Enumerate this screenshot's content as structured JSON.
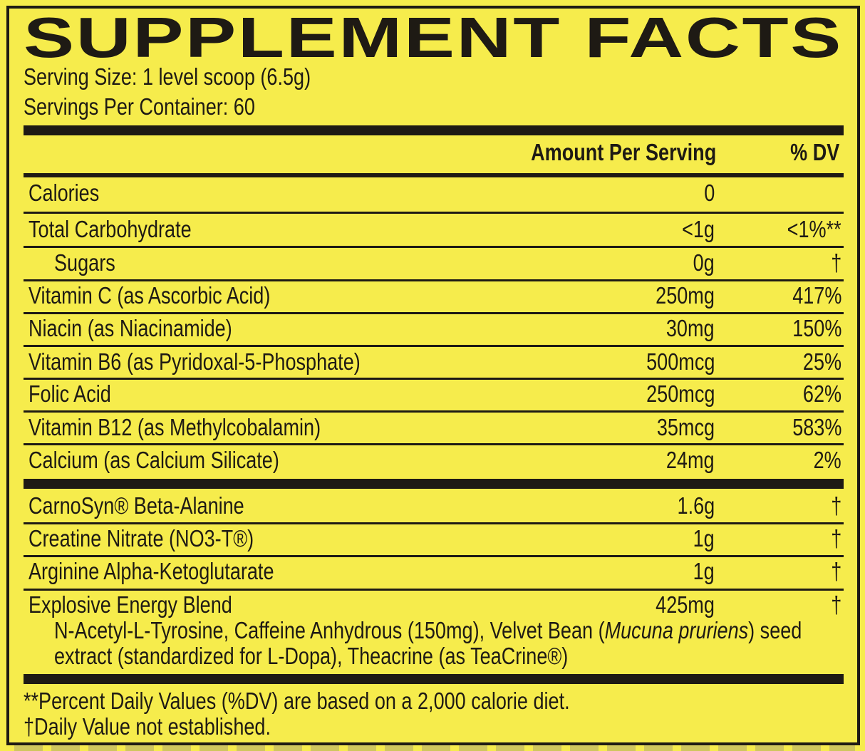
{
  "title": "SUPPLEMENT FACTS",
  "serving_size": "Serving Size: 1 level scoop (6.5g)",
  "servings_per_container": "Servings Per Container: 60",
  "header": {
    "amount": "Amount Per Serving",
    "dv": "% DV"
  },
  "rows": [
    {
      "name": "Calories",
      "amount": "0",
      "dv": ""
    },
    {
      "name": "Total Carbohydrate",
      "amount": "<1g",
      "dv": "<1%**"
    },
    {
      "name": "Sugars",
      "amount": "0g",
      "dv": "†"
    },
    {
      "name": "Vitamin C (as Ascorbic Acid)",
      "amount": "250mg",
      "dv": "417%"
    },
    {
      "name": "Niacin (as Niacinamide)",
      "amount": "30mg",
      "dv": "150%"
    },
    {
      "name": "Vitamin B6 (as Pyridoxal-5-Phosphate)",
      "amount": "500mcg",
      "dv": "25%"
    },
    {
      "name": "Folic Acid",
      "amount": "250mcg",
      "dv": "62%"
    },
    {
      "name": "Vitamin B12 (as Methylcobalamin)",
      "amount": "35mcg",
      "dv": "583%"
    },
    {
      "name": "Calcium (as Calcium Silicate)",
      "amount": "24mg",
      "dv": "2%"
    },
    {
      "name": "CarnoSyn® Beta-Alanine",
      "amount": "1.6g",
      "dv": "†"
    },
    {
      "name": "Creatine Nitrate (NO3-T®)",
      "amount": "1g",
      "dv": "†"
    },
    {
      "name": "Arginine Alpha-Ketoglutarate",
      "amount": "1g",
      "dv": "†"
    },
    {
      "name": "Explosive Energy Blend",
      "amount": "425mg",
      "dv": "†"
    }
  ],
  "blend_ingredients": {
    "line1_a": "N-Acetyl-L-Tyrosine, Caffeine Anhydrous (150mg), Velvet Bean (",
    "line1_italic": "Mucuna pruriens",
    "line1_b": ") seed",
    "line2": "extract (standardized for L-Dopa), Theacrine (as TeaCrine®)"
  },
  "footnotes": [
    "**Percent Daily Values (%DV) are based on a 2,000 calorie diet.",
    "†Daily Value not established."
  ],
  "colors": {
    "background": "#f6ec4c",
    "ink": "#1e1a14"
  }
}
